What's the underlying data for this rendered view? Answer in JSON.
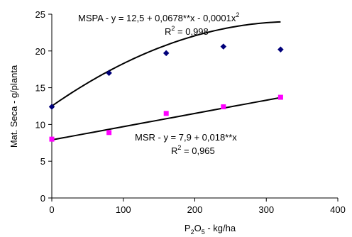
{
  "chart_data": {
    "type": "scatter",
    "xlabel": "P2O5 - kg/ha",
    "xlabel_parts": {
      "main": "P",
      "sub1": "2",
      "mid": "O",
      "sub2": "5",
      "rest": " -  kg/ha"
    },
    "ylabel": "Mat. Seca - g/planta",
    "xlim": [
      0,
      400
    ],
    "ylim": [
      0,
      25
    ],
    "xticks": [
      "0",
      "100",
      "200",
      "300",
      "400"
    ],
    "yticks": [
      "0",
      "5",
      "10",
      "15",
      "20",
      "25"
    ],
    "grid": false,
    "series": [
      {
        "name": "MSPA",
        "marker": "diamond",
        "color": "#00007a",
        "x": [
          0,
          80,
          160,
          240,
          320
        ],
        "y": [
          12.4,
          17.0,
          19.7,
          20.6,
          20.2
        ],
        "fit": {
          "type": "quadratic",
          "a": 12.5,
          "b": 0.0678,
          "c": -0.0001,
          "x_range": [
            0,
            320
          ]
        }
      },
      {
        "name": "MSR",
        "marker": "square",
        "color": "#ff00ff",
        "x": [
          0,
          80,
          160,
          240,
          320
        ],
        "y": [
          8.0,
          8.9,
          11.5,
          12.4,
          13.7
        ],
        "fit": {
          "type": "linear",
          "a": 7.9,
          "b": 0.018,
          "x_range": [
            0,
            320
          ]
        }
      }
    ],
    "annotations": {
      "mspa_eq": {
        "base": "MSPA - y = 12,5  + 0,0678**x - 0,0001x",
        "sup": "2"
      },
      "mspa_r2": {
        "pre": "R",
        "sup": "2",
        "post": " = 0,998"
      },
      "msr_eq": {
        "base": "MSR - y =  7,9 + 0,018**x"
      },
      "msr_r2": {
        "pre": "R",
        "sup": "2",
        "post": " = 0,965"
      }
    }
  }
}
